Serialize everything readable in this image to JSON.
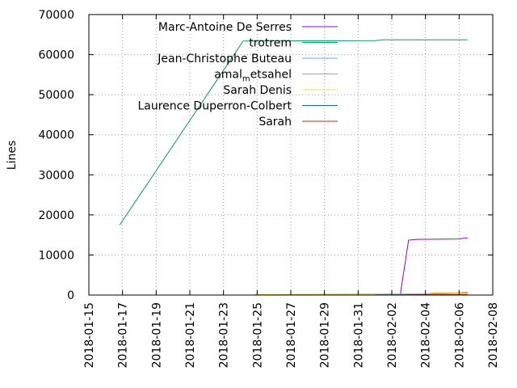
{
  "chart_data": {
    "type": "line",
    "title": "",
    "xlabel": "",
    "ylabel": "Lines",
    "ylim": [
      0,
      70000
    ],
    "xlim": [
      "2018-01-15",
      "2018-02-08"
    ],
    "grid": true,
    "legend_position": "top-right",
    "y_ticks": [
      0,
      10000,
      20000,
      30000,
      40000,
      50000,
      60000,
      70000
    ],
    "y_tick_labels": [
      "0",
      "10000",
      "20000",
      "30000",
      "40000",
      "50000",
      "60000",
      "70000"
    ],
    "x_ticks": [
      "2018-01-15",
      "2018-01-17",
      "2018-01-19",
      "2018-01-21",
      "2018-01-23",
      "2018-01-25",
      "2018-01-27",
      "2018-01-29",
      "2018-01-31",
      "2018-02-02",
      "2018-02-04",
      "2018-02-06",
      "2018-02-08"
    ],
    "series": [
      {
        "name": "Marc-Antoine De Serres",
        "color": "#9400d3",
        "points": [
          [
            "2018-02-02T12:00",
            0
          ],
          [
            "2018-02-03T00:00",
            13700
          ],
          [
            "2018-02-03T12:00",
            13900
          ],
          [
            "2018-02-06T00:00",
            14000
          ],
          [
            "2018-02-06T12:00",
            14300
          ]
        ]
      },
      {
        "name": "trotrem",
        "color": "#009e73",
        "points": [
          [
            "2018-01-16T20:00",
            17500
          ],
          [
            "2018-01-24T04:00",
            63400
          ],
          [
            "2018-02-01T00:00",
            63500
          ],
          [
            "2018-02-01T12:00",
            63700
          ],
          [
            "2018-02-06T12:00",
            63700
          ]
        ]
      },
      {
        "name": "Jean-Christophe Buteau",
        "color": "#56b4e9",
        "points": [
          [
            "2018-01-24T20:00",
            100
          ],
          [
            "2018-02-05T00:00",
            300
          ],
          [
            "2018-02-06T12:00",
            700
          ]
        ]
      },
      {
        "name": "amal_metsahel",
        "color": "#e69f00",
        "points": [
          [
            "2018-01-24T20:00",
            100
          ],
          [
            "2018-02-04T00:00",
            200
          ],
          [
            "2018-02-04T12:00",
            500
          ],
          [
            "2018-02-06T12:00",
            500
          ]
        ]
      },
      {
        "name": "Sarah Denis",
        "color": "#f0e442",
        "points": [
          [
            "2018-01-24T20:00",
            50
          ],
          [
            "2018-02-04T00:00",
            100
          ],
          [
            "2018-02-06T12:00",
            200
          ]
        ]
      },
      {
        "name": "Laurence Duperron-Colbert",
        "color": "#0072b2",
        "points": [
          [
            "2018-02-01T00:00",
            50
          ],
          [
            "2018-02-06T12:00",
            100
          ]
        ]
      },
      {
        "name": "Sarah",
        "color": "#e51e10",
        "points": [
          [
            "2018-02-03T00:00",
            50
          ],
          [
            "2018-02-06T12:00",
            100
          ]
        ]
      }
    ]
  },
  "legend_texts": [
    {
      "text": "Marc-Antoine De Serres"
    },
    {
      "text": "trotrem"
    },
    {
      "text": "Jean-Christophe Buteau"
    },
    {
      "text": "amal",
      "sub": "m",
      "rest": "etsahel"
    },
    {
      "text": "Sarah Denis"
    },
    {
      "text": "Laurence Duperron-Colbert"
    },
    {
      "text": "Sarah"
    }
  ]
}
